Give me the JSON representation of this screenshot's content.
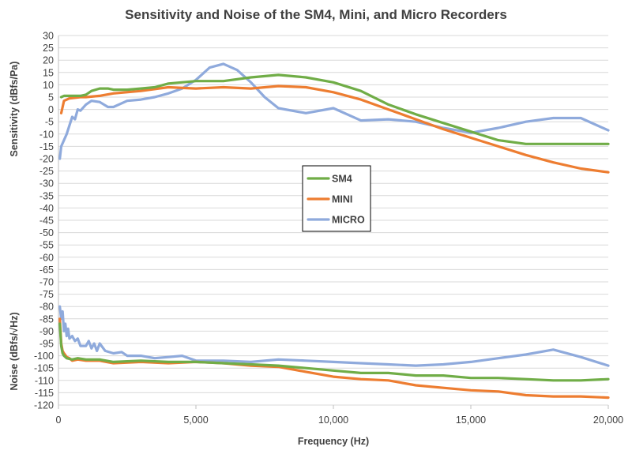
{
  "chart_data": {
    "type": "line",
    "title": "Sensitivity and Noise of the SM4, Mini, and Micro Recorders",
    "xlabel": "Frequency (Hz)",
    "ylabel_upper": "Sensitivity (dBfs/Pa)",
    "ylabel_lower": "Noise (dBfs/√Hz)",
    "xlim": [
      0,
      20000
    ],
    "ylim": [
      -120,
      30
    ],
    "x_ticks": [
      0,
      5000,
      10000,
      15000,
      20000
    ],
    "x_tick_labels": [
      "0",
      "5,000",
      "10,000",
      "15,000",
      "20,000"
    ],
    "y_ticks": [
      30,
      25,
      20,
      15,
      10,
      5,
      0,
      -5,
      -10,
      -15,
      -20,
      -25,
      -30,
      -35,
      -40,
      -45,
      -50,
      -55,
      -60,
      -65,
      -70,
      -75,
      -80,
      -85,
      -90,
      -95,
      -100,
      -105,
      -110,
      -115,
      -120
    ],
    "grid": "horizontal",
    "legend_position": "center",
    "colors": {
      "SM4": "#70ad47",
      "MINI": "#ed7d31",
      "MICRO": "#8faadc"
    },
    "series": [
      {
        "name": "SM4",
        "group": "sensitivity",
        "x": [
          100,
          200,
          400,
          800,
          1000,
          1200,
          1500,
          1800,
          2000,
          2500,
          3000,
          3500,
          4000,
          5000,
          6000,
          7000,
          8000,
          9000,
          10000,
          11000,
          12000,
          13000,
          14000,
          15000,
          16000,
          17000,
          18000,
          19000,
          20000
        ],
        "values": [
          5,
          5.5,
          5.5,
          5.5,
          6,
          7.5,
          8.5,
          8.5,
          8,
          8,
          8.5,
          9,
          10.5,
          11.5,
          11.5,
          13,
          14,
          13,
          11,
          7.5,
          2,
          -2,
          -5.5,
          -9,
          -12.5,
          -14,
          -14,
          -14,
          -14
        ]
      },
      {
        "name": "MINI",
        "group": "sensitivity",
        "x": [
          100,
          200,
          400,
          800,
          1000,
          1500,
          2000,
          3000,
          4000,
          5000,
          6000,
          7000,
          8000,
          9000,
          10000,
          11000,
          12000,
          13000,
          14000,
          15000,
          16000,
          17000,
          18000,
          19000,
          20000
        ],
        "values": [
          -1.5,
          3.5,
          4.5,
          5,
          5,
          5.5,
          6.5,
          7.5,
          9,
          8.5,
          9,
          8.5,
          9.5,
          9,
          7,
          4,
          0,
          -4,
          -8,
          -11.5,
          -15,
          -18.5,
          -21.5,
          -24,
          -25.5
        ]
      },
      {
        "name": "MICRO",
        "group": "sensitivity",
        "x": [
          50,
          100,
          300,
          500,
          600,
          700,
          800,
          1000,
          1200,
          1500,
          1800,
          2000,
          2500,
          3000,
          3500,
          4000,
          4500,
          5000,
          5500,
          6000,
          6500,
          7000,
          7500,
          8000,
          9000,
          10000,
          11000,
          12000,
          13000,
          14000,
          15000,
          16000,
          17000,
          18000,
          19000,
          20000
        ],
        "values": [
          -20,
          -15,
          -10,
          -3,
          -4,
          0,
          -0.5,
          2,
          3.5,
          3,
          1,
          1,
          3.5,
          4,
          5,
          6.5,
          8.5,
          12,
          17,
          18.5,
          16,
          11,
          5,
          0.5,
          -1.5,
          0.5,
          -4.5,
          -4,
          -5,
          -7.5,
          -9.5,
          -7.5,
          -5,
          -3.5,
          -3.5,
          -8.5
        ]
      },
      {
        "name": "SM4",
        "group": "noise",
        "x": [
          50,
          100,
          150,
          200,
          300,
          500,
          700,
          1000,
          1500,
          2000,
          3000,
          4000,
          5000,
          6000,
          7000,
          8000,
          9000,
          10000,
          11000,
          12000,
          13000,
          14000,
          15000,
          16000,
          17000,
          18000,
          19000,
          20000
        ],
        "values": [
          -87,
          -96,
          -99,
          -100,
          -101,
          -101.5,
          -101,
          -101.5,
          -101.5,
          -102.5,
          -102,
          -102.5,
          -102.5,
          -103,
          -103.5,
          -104,
          -105,
          -106,
          -107,
          -107,
          -108,
          -108,
          -109,
          -109,
          -109.5,
          -110,
          -110,
          -109.5
        ]
      },
      {
        "name": "MINI",
        "group": "noise",
        "x": [
          50,
          100,
          150,
          200,
          300,
          400,
          500,
          700,
          1000,
          1500,
          2000,
          3000,
          4000,
          5000,
          6000,
          7000,
          8000,
          9000,
          10000,
          11000,
          12000,
          13000,
          14000,
          15000,
          16000,
          17000,
          18000,
          19000,
          20000
        ],
        "values": [
          -85,
          -95,
          -98,
          -99,
          -100.5,
          -101,
          -102,
          -101.5,
          -102,
          -102,
          -103,
          -102.5,
          -103,
          -102.5,
          -103,
          -104,
          -104.5,
          -106.5,
          -108.5,
          -109.5,
          -110,
          -112,
          -113,
          -114,
          -114.5,
          -116,
          -116.5,
          -116.5,
          -117
        ]
      },
      {
        "name": "MICRO",
        "group": "noise",
        "x": [
          50,
          100,
          150,
          200,
          250,
          300,
          350,
          400,
          500,
          600,
          700,
          800,
          1000,
          1100,
          1200,
          1300,
          1400,
          1500,
          1700,
          2000,
          2300,
          2500,
          3000,
          3500,
          4000,
          4500,
          5000,
          6000,
          7000,
          8000,
          9000,
          10000,
          11000,
          12000,
          13000,
          14000,
          15000,
          16000,
          17000,
          18000,
          19000,
          20000
        ],
        "values": [
          -80,
          -85,
          -82,
          -90,
          -87,
          -92,
          -89,
          -93,
          -92,
          -94,
          -93,
          -96,
          -96,
          -94,
          -97,
          -95,
          -98,
          -95,
          -98,
          -99,
          -98.5,
          -100,
          -100,
          -101,
          -100.5,
          -100,
          -102,
          -102,
          -102.5,
          -101.5,
          -102,
          -102.5,
          -103,
          -103.5,
          -104,
          -103.5,
          -102.5,
          -101,
          -99.5,
          -97.5,
          -100.5,
          -104
        ]
      }
    ]
  }
}
